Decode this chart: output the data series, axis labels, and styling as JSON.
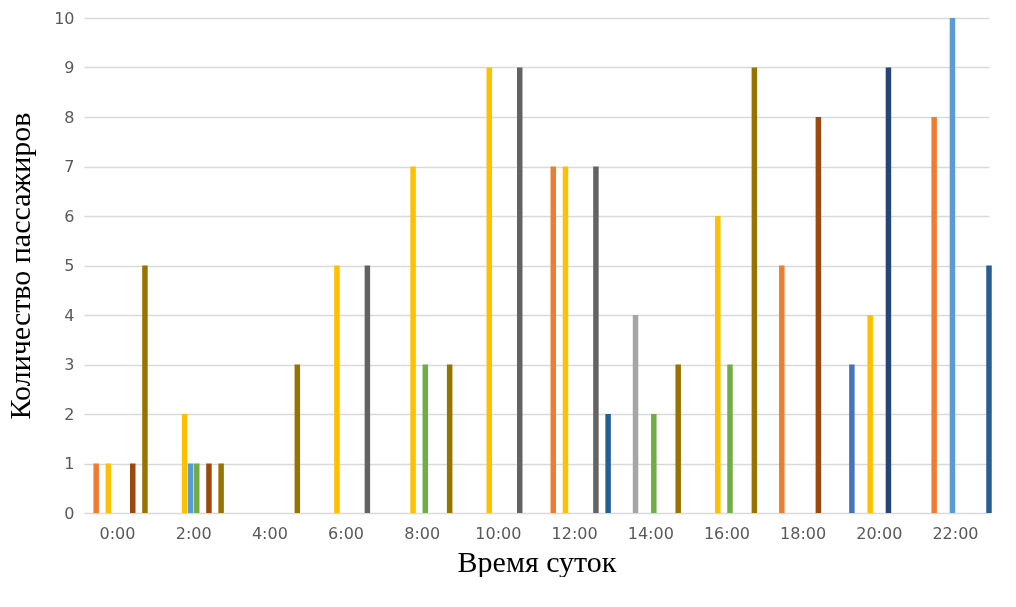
{
  "chart_data": {
    "type": "bar",
    "xlabel": "Время суток",
    "ylabel": "Количество пассажиров",
    "categories": [
      "0:00",
      "2:00",
      "4:00",
      "6:00",
      "8:00",
      "10:00",
      "12:00",
      "14:00",
      "16:00",
      "18:00",
      "20:00",
      "22:00"
    ],
    "series": [
      {
        "color": "#4472c4",
        "values": [
          0,
          0,
          0,
          0,
          0,
          0,
          0,
          0,
          0,
          0,
          3,
          0
        ]
      },
      {
        "color": "#ed7d31",
        "values": [
          1,
          0,
          0,
          0,
          0,
          0,
          7,
          0,
          0,
          5,
          0,
          8
        ]
      },
      {
        "color": "#a5a5a5",
        "values": [
          0,
          0,
          0,
          0,
          0,
          0,
          0,
          4,
          0,
          0,
          0,
          0
        ]
      },
      {
        "color": "#ffc000",
        "values": [
          1,
          2,
          0,
          5,
          7,
          9,
          7,
          0,
          6,
          0,
          4,
          0
        ]
      },
      {
        "color": "#5b9bd5",
        "values": [
          0,
          1,
          0,
          0,
          0,
          0,
          0,
          0,
          0,
          0,
          0,
          10
        ]
      },
      {
        "color": "#70ad47",
        "values": [
          0,
          1,
          0,
          0,
          3,
          0,
          0,
          2,
          3,
          0,
          0,
          0
        ]
      },
      {
        "color": "#264478",
        "values": [
          0,
          0,
          0,
          0,
          0,
          0,
          0,
          0,
          0,
          0,
          9,
          0
        ]
      },
      {
        "color": "#9e480e",
        "values": [
          1,
          1,
          0,
          0,
          0,
          0,
          0,
          0,
          0,
          8,
          0,
          0
        ]
      },
      {
        "color": "#636363",
        "values": [
          0,
          0,
          0,
          5,
          0,
          9,
          7,
          0,
          0,
          0,
          0,
          0
        ]
      },
      {
        "color": "#997300",
        "values": [
          5,
          1,
          3,
          0,
          3,
          0,
          0,
          3,
          9,
          0,
          0,
          0
        ]
      },
      {
        "color": "#255e91",
        "values": [
          0,
          0,
          0,
          0,
          0,
          0,
          2,
          0,
          0,
          0,
          0,
          5
        ]
      }
    ],
    "ylim": [
      0,
      10
    ],
    "yticks": [
      0,
      1,
      2,
      3,
      4,
      5,
      6,
      7,
      8,
      9,
      10
    ],
    "grid": "y",
    "legend": false
  }
}
